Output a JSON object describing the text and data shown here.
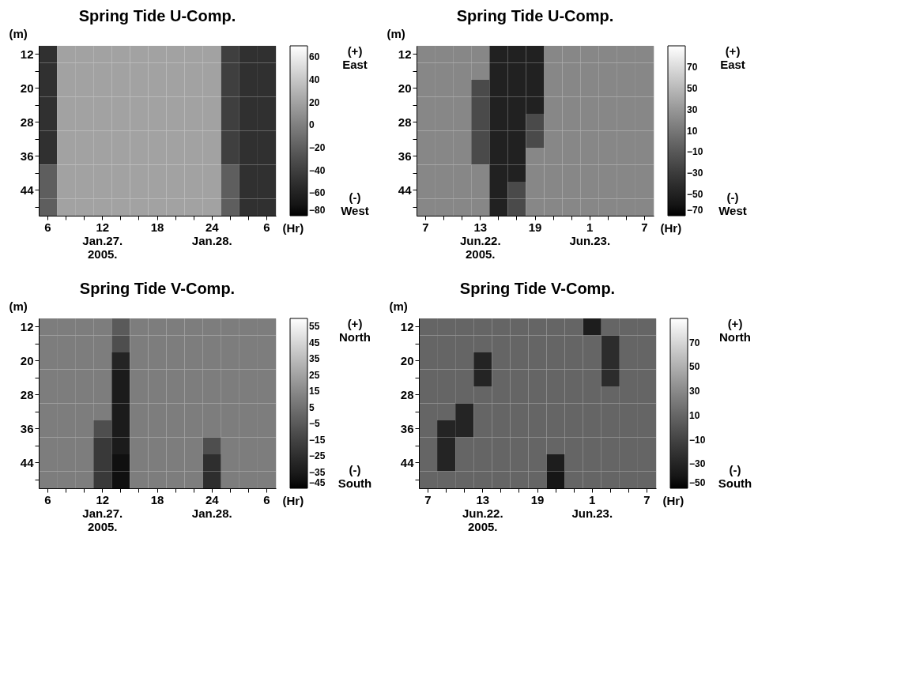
{
  "chart_data": [
    {
      "type": "heatmap",
      "title": "Spring Tide U-Comp.",
      "xlabel": "(Hr)",
      "ylabel": "(m)",
      "categories": [
        "6",
        null,
        null,
        "12\nJan.27.\n2005.",
        null,
        null,
        "18",
        null,
        null,
        "24\nJan.28.",
        null,
        null,
        "6"
      ],
      "y_categories": [
        "12",
        null,
        "20",
        null,
        "28",
        null,
        "36",
        null,
        "44",
        null
      ],
      "cells": [
        [
          -50,
          20,
          20,
          20,
          20,
          20,
          20,
          20,
          20,
          20,
          -40,
          -50,
          -50
        ],
        [
          -50,
          20,
          20,
          20,
          20,
          20,
          20,
          20,
          20,
          20,
          -40,
          -50,
          -50
        ],
        [
          -50,
          20,
          20,
          20,
          20,
          20,
          20,
          20,
          20,
          20,
          -40,
          -50,
          -50
        ],
        [
          -50,
          20,
          20,
          20,
          20,
          20,
          20,
          20,
          20,
          20,
          -40,
          -50,
          -50
        ],
        [
          -50,
          20,
          20,
          20,
          20,
          20,
          20,
          20,
          20,
          20,
          -40,
          -50,
          -50
        ],
        [
          -50,
          20,
          20,
          20,
          20,
          20,
          20,
          20,
          20,
          20,
          -40,
          -50,
          -50
        ],
        [
          -50,
          20,
          20,
          20,
          20,
          20,
          20,
          20,
          20,
          20,
          -40,
          -50,
          -50
        ],
        [
          -20,
          20,
          20,
          20,
          20,
          20,
          20,
          20,
          20,
          20,
          -20,
          -50,
          -50
        ],
        [
          -20,
          20,
          20,
          20,
          20,
          20,
          20,
          20,
          20,
          20,
          -20,
          -50,
          -50
        ],
        [
          -20,
          20,
          20,
          20,
          20,
          20,
          20,
          20,
          20,
          20,
          -20,
          -50,
          -50
        ]
      ],
      "clim": [
        -80,
        70
      ],
      "cticks": [
        -80,
        -60,
        -40,
        -20,
        0,
        20,
        40,
        60
      ],
      "annotations": [
        "(+)\nEast",
        "(-)\nWest"
      ]
    },
    {
      "type": "heatmap",
      "title": "Spring Tide U-Comp.",
      "xlabel": "(Hr)",
      "ylabel": "(m)",
      "categories": [
        "7",
        null,
        null,
        "13\nJun.22.\n2005.",
        null,
        null,
        "19",
        null,
        null,
        "1\nJun.23.",
        null,
        null,
        "7"
      ],
      "y_categories": [
        "12",
        null,
        "20",
        null,
        "28",
        null,
        "36",
        null,
        "44",
        null
      ],
      "cells": [
        [
          20,
          20,
          20,
          20,
          -50,
          -50,
          -50,
          20,
          20,
          20,
          20,
          20,
          20
        ],
        [
          20,
          20,
          20,
          20,
          -50,
          -50,
          -50,
          20,
          20,
          20,
          20,
          20,
          20
        ],
        [
          20,
          20,
          20,
          -20,
          -50,
          -50,
          -50,
          20,
          20,
          20,
          20,
          20,
          20
        ],
        [
          20,
          20,
          20,
          -20,
          -50,
          -50,
          -50,
          20,
          20,
          20,
          20,
          20,
          20
        ],
        [
          20,
          20,
          20,
          -20,
          -50,
          -50,
          -20,
          20,
          20,
          20,
          20,
          20,
          20
        ],
        [
          20,
          20,
          20,
          -20,
          -50,
          -50,
          -20,
          20,
          20,
          20,
          20,
          20,
          20
        ],
        [
          20,
          20,
          20,
          -20,
          -50,
          -50,
          20,
          20,
          20,
          20,
          20,
          20,
          20
        ],
        [
          20,
          20,
          20,
          20,
          -50,
          -50,
          20,
          20,
          20,
          20,
          20,
          20,
          20
        ],
        [
          20,
          20,
          20,
          20,
          -50,
          -20,
          20,
          20,
          20,
          20,
          20,
          20,
          20
        ],
        [
          20,
          20,
          20,
          20,
          -50,
          -20,
          20,
          20,
          20,
          20,
          20,
          20,
          20
        ]
      ],
      "clim": [
        -70,
        90
      ],
      "cticks": [
        -70,
        -50,
        -30,
        -10,
        10,
        30,
        50,
        70
      ],
      "annotations": [
        "(+)\nEast",
        "(-)\nWest"
      ]
    },
    {
      "type": "heatmap",
      "title": "Spring Tide V-Comp.",
      "xlabel": "(Hr)",
      "ylabel": "(m)",
      "categories": [
        "6",
        null,
        null,
        "12\nJan.27.\n2005.",
        null,
        null,
        "18",
        null,
        null,
        "24\nJan.28.",
        null,
        null,
        "6"
      ],
      "y_categories": [
        "12",
        null,
        "20",
        null,
        "28",
        null,
        "36",
        null,
        "44",
        null
      ],
      "cells": [
        [
          10,
          10,
          10,
          10,
          -5,
          10,
          10,
          10,
          10,
          10,
          10,
          10,
          10
        ],
        [
          10,
          10,
          10,
          10,
          -10,
          10,
          10,
          10,
          10,
          10,
          10,
          10,
          10
        ],
        [
          10,
          10,
          10,
          10,
          -30,
          10,
          10,
          10,
          10,
          10,
          10,
          10,
          10
        ],
        [
          10,
          10,
          10,
          10,
          -35,
          10,
          10,
          10,
          10,
          10,
          10,
          10,
          10
        ],
        [
          10,
          10,
          10,
          10,
          -35,
          10,
          10,
          10,
          10,
          10,
          10,
          10,
          10
        ],
        [
          10,
          10,
          10,
          10,
          -35,
          10,
          10,
          10,
          10,
          10,
          10,
          10,
          10
        ],
        [
          10,
          10,
          10,
          -10,
          -35,
          10,
          10,
          10,
          10,
          10,
          10,
          10,
          10
        ],
        [
          10,
          10,
          10,
          -20,
          -35,
          10,
          10,
          10,
          10,
          -10,
          10,
          10,
          10
        ],
        [
          10,
          10,
          10,
          -20,
          -40,
          10,
          10,
          10,
          10,
          -25,
          10,
          10,
          10
        ],
        [
          10,
          10,
          10,
          -20,
          -40,
          10,
          10,
          10,
          10,
          -25,
          10,
          10,
          10
        ]
      ],
      "clim": [
        -45,
        60
      ],
      "cticks": [
        -45,
        -35,
        -25,
        -15,
        -5,
        5,
        15,
        25,
        35,
        45,
        55
      ],
      "annotations": [
        "(+)\nNorth",
        "(-)\nSouth"
      ]
    },
    {
      "type": "heatmap",
      "title": "Spring Tide V-Comp.",
      "xlabel": "(Hr)",
      "ylabel": "(m)",
      "categories": [
        "7",
        null,
        null,
        "13\nJun.22.\n2005.",
        null,
        null,
        "19",
        null,
        null,
        "1\nJun.23.",
        null,
        null,
        "7"
      ],
      "y_categories": [
        "12",
        null,
        "20",
        null,
        "28",
        null,
        "36",
        null,
        "44",
        null
      ],
      "cells": [
        [
          10,
          10,
          10,
          10,
          10,
          10,
          10,
          10,
          10,
          -35,
          10,
          10,
          10
        ],
        [
          10,
          10,
          10,
          10,
          10,
          10,
          10,
          10,
          10,
          10,
          -25,
          10,
          10
        ],
        [
          10,
          10,
          10,
          -30,
          10,
          10,
          10,
          10,
          10,
          10,
          -25,
          10,
          10
        ],
        [
          10,
          10,
          10,
          -30,
          10,
          10,
          10,
          10,
          10,
          10,
          -25,
          10,
          10
        ],
        [
          10,
          10,
          10,
          10,
          10,
          10,
          10,
          10,
          10,
          10,
          10,
          10,
          10
        ],
        [
          10,
          10,
          -30,
          10,
          10,
          10,
          10,
          10,
          10,
          10,
          10,
          10,
          10
        ],
        [
          10,
          -30,
          -30,
          10,
          10,
          10,
          10,
          10,
          10,
          10,
          10,
          10,
          10
        ],
        [
          10,
          -30,
          10,
          10,
          10,
          10,
          10,
          10,
          10,
          10,
          10,
          10,
          10
        ],
        [
          10,
          -30,
          10,
          10,
          10,
          10,
          10,
          -35,
          10,
          10,
          10,
          10,
          10
        ],
        [
          10,
          10,
          10,
          10,
          10,
          10,
          10,
          -40,
          10,
          10,
          10,
          10,
          10
        ]
      ],
      "clim": [
        -50,
        90
      ],
      "cticks": [
        -50,
        -30,
        -10,
        10,
        30,
        50,
        70
      ],
      "annotations": [
        "(+)\nNorth",
        "(-)\nSouth"
      ]
    }
  ]
}
